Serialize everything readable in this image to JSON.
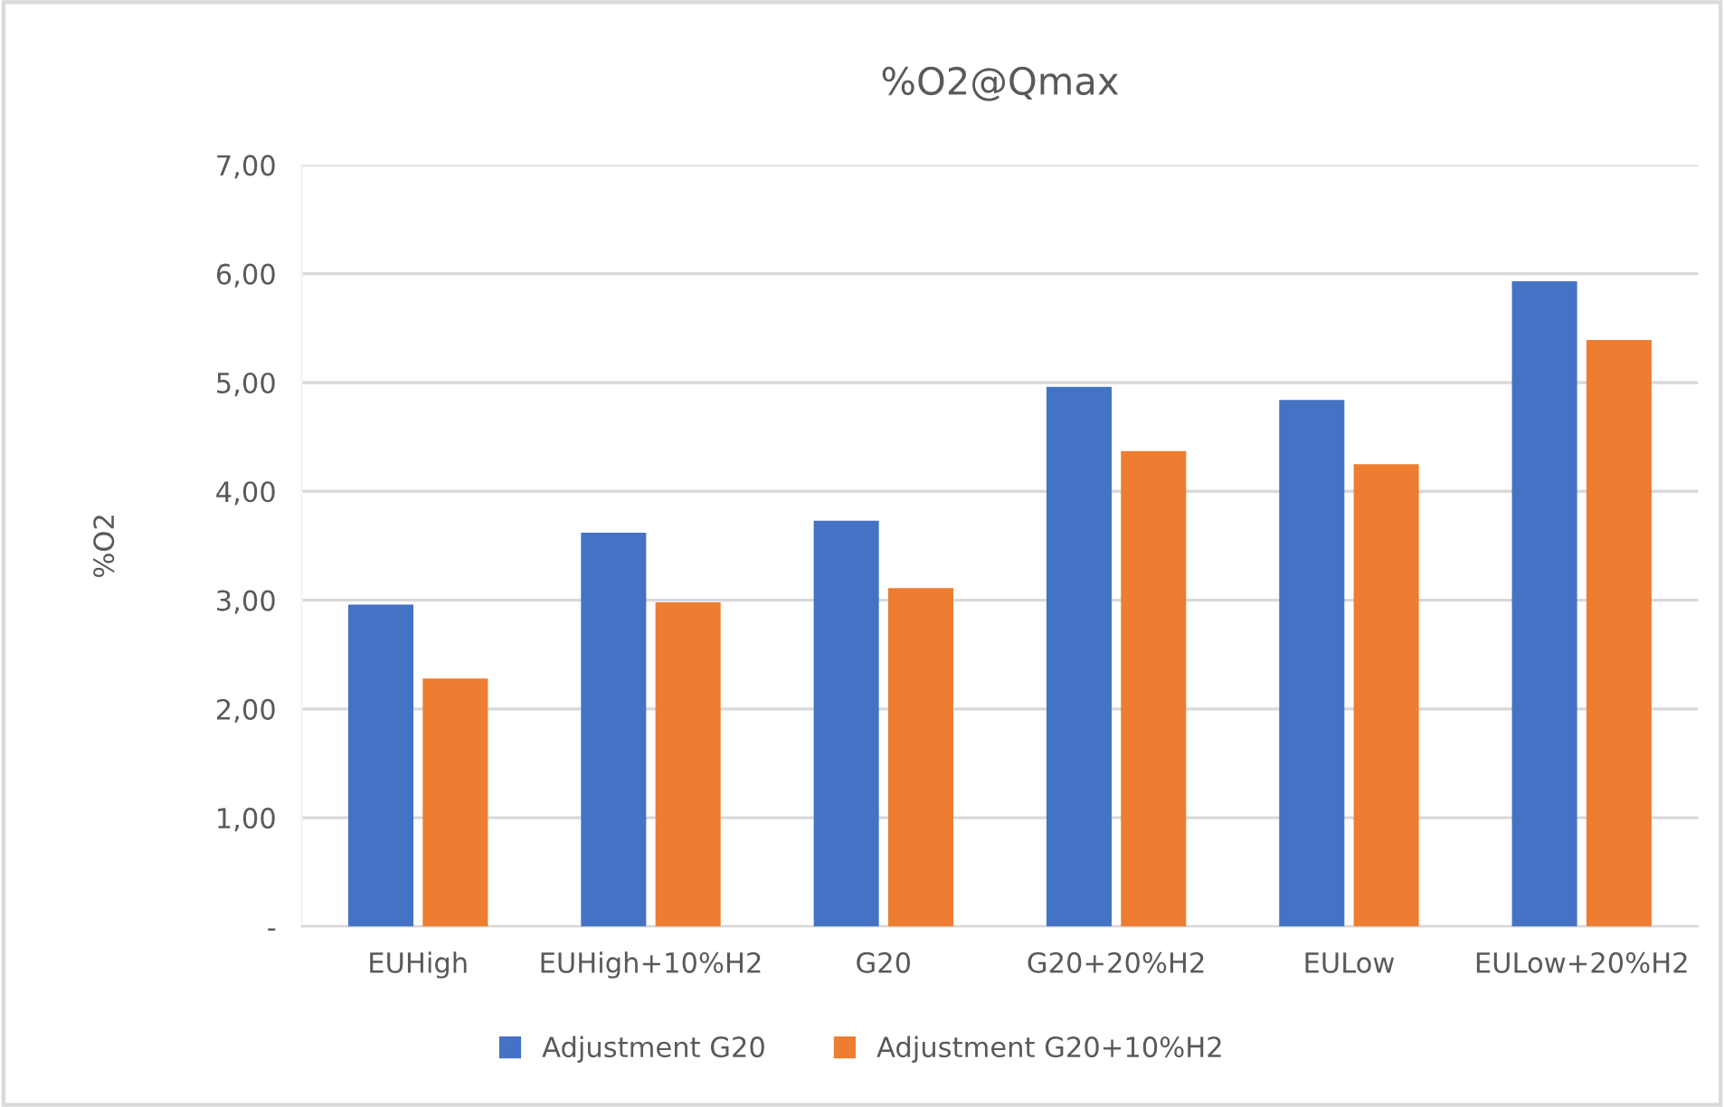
{
  "chart_data": {
    "type": "bar",
    "title": "%O2@Qmax",
    "ylabel": "%O2",
    "categories": [
      "EUHigh",
      "EUHigh+10%H2",
      "G20",
      "G20+20%H2",
      "EULow",
      "EULow+20%H2"
    ],
    "series": [
      {
        "name": "Adjustment G20",
        "color": "#4472c4",
        "values": [
          2.96,
          3.62,
          3.73,
          4.96,
          4.84,
          5.93
        ]
      },
      {
        "name": "Adjustment G20+10%H2",
        "color": "#ed7d31",
        "values": [
          2.28,
          2.98,
          3.11,
          4.37,
          4.25,
          5.39
        ]
      }
    ],
    "ylim": [
      0,
      7
    ],
    "yticks": [
      {
        "value": 0,
        "label": "-"
      },
      {
        "value": 1,
        "label": "1,00"
      },
      {
        "value": 2,
        "label": "2,00"
      },
      {
        "value": 3,
        "label": "3,00"
      },
      {
        "value": 4,
        "label": "4,00"
      },
      {
        "value": 5,
        "label": "5,00"
      },
      {
        "value": 6,
        "label": "6,00"
      },
      {
        "value": 7,
        "label": "7,00"
      }
    ],
    "grid": "y",
    "legend": "bottom"
  }
}
